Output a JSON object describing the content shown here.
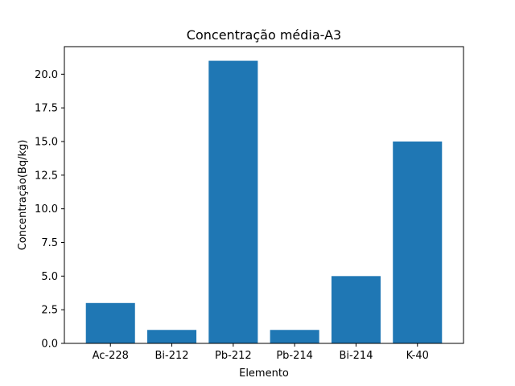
{
  "chart_data": {
    "type": "bar",
    "title": "Concentração média-A3",
    "xlabel": "Elemento",
    "ylabel": "Concentração(Bq/kg)",
    "categories": [
      "Ac-228",
      "Bi-212",
      "Pb-212",
      "Pb-214",
      "Bi-214",
      "K-40"
    ],
    "values": [
      3,
      1,
      21,
      1,
      5,
      15
    ],
    "ylim": [
      0,
      22.05
    ],
    "yticks": [
      0.0,
      2.5,
      5.0,
      7.5,
      10.0,
      12.5,
      15.0,
      17.5,
      20.0
    ],
    "ytick_labels": [
      "0.0",
      "2.5",
      "5.0",
      "7.5",
      "10.0",
      "12.5",
      "15.0",
      "17.5",
      "20.0"
    ],
    "bar_color": "#1f77b4",
    "grid": false,
    "legend": "none"
  }
}
